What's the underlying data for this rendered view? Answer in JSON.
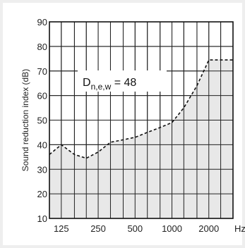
{
  "chart_data": {
    "type": "area",
    "ylabel": "Sound reduction index (dB)",
    "x_tick_labels": [
      "125",
      "250",
      "500",
      "1000",
      "2000"
    ],
    "x_unit_label": "Hz",
    "y_ticks": [
      10,
      20,
      30,
      40,
      50,
      60,
      70,
      80,
      90
    ],
    "ylim": [
      10,
      90
    ],
    "x_scale": "log (third-octave bands)",
    "grid": true,
    "annotation": {
      "main": "D",
      "subscript": "n,e,w",
      "rest": " = 48"
    },
    "series": [
      {
        "line_style": "dashed",
        "fill": "#e8e8e8",
        "x": [
          100,
          125,
          160,
          200,
          250,
          315,
          400,
          500,
          630,
          800,
          1000,
          1250,
          1600,
          2000,
          2500,
          3150
        ],
        "y": [
          36,
          40,
          36,
          34.5,
          37,
          41,
          42,
          43,
          45,
          47,
          49,
          55,
          64,
          74.5,
          74.5,
          74.5
        ]
      }
    ]
  }
}
